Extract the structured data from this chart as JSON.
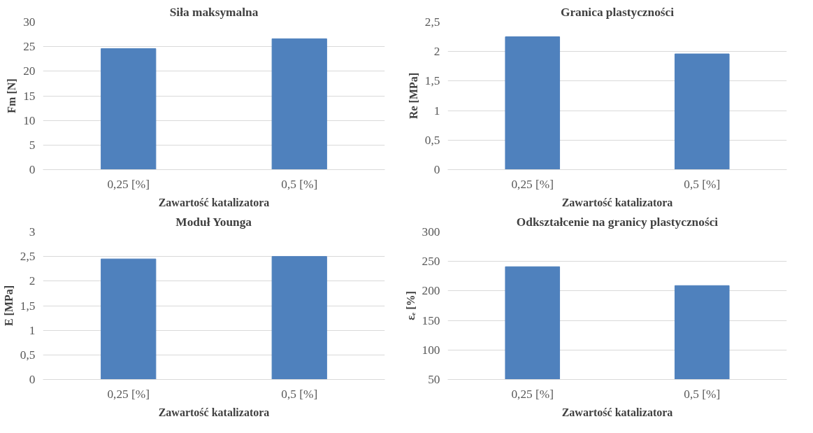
{
  "chart_data": [
    {
      "type": "bar",
      "title": "Siła maksymalna",
      "xlabel": "Zawartość katalizatora",
      "ylabel": "Fm [N]",
      "categories": [
        "0,25 [%]",
        "0,5 [%]"
      ],
      "values": [
        24.6,
        26.6
      ],
      "color": "#4f81bd",
      "ylim": [
        0,
        30
      ],
      "yticks": [
        0,
        5,
        10,
        15,
        20,
        25,
        30
      ],
      "grid": "y"
    },
    {
      "type": "bar",
      "title": "Granica plastyczności",
      "xlabel": "Zawartość katalizatora",
      "ylabel": "Re [MPa]",
      "categories": [
        "0,25 [%]",
        "0,5 [%]"
      ],
      "values": [
        2.25,
        1.96
      ],
      "color": "#4f81bd",
      "ylim": [
        0,
        2.5
      ],
      "yticks": [
        0,
        {
          "value": 0.5,
          "label": "0,5"
        },
        1,
        {
          "value": 1.5,
          "label": "1,5"
        },
        2,
        {
          "value": 2.5,
          "label": "2,5"
        }
      ],
      "grid": "y"
    },
    {
      "type": "bar",
      "title": "Moduł Younga",
      "xlabel": "Zawartość katalizatora",
      "ylabel": "E [MPa]",
      "categories": [
        "0,25 [%]",
        "0,5 [%]"
      ],
      "values": [
        2.45,
        2.5
      ],
      "color": "#4f81bd",
      "ylim": [
        0,
        3
      ],
      "yticks": [
        0,
        {
          "value": 0.5,
          "label": "0,5"
        },
        1,
        {
          "value": 1.5,
          "label": "1,5"
        },
        2,
        {
          "value": 2.5,
          "label": "2,5"
        },
        3
      ],
      "grid": "y"
    },
    {
      "type": "bar",
      "title": "Odkształcenie na granicy plastyczności",
      "xlabel": "Zawartość katalizatora",
      "ylabel": "εₑ [%]",
      "categories": [
        "0,25 [%]",
        "0,5 [%]"
      ],
      "values": [
        241,
        209
      ],
      "color": "#4f81bd",
      "ylim": [
        50,
        300
      ],
      "yticks": [
        50,
        100,
        150,
        200,
        250,
        300
      ],
      "grid": "y"
    }
  ]
}
